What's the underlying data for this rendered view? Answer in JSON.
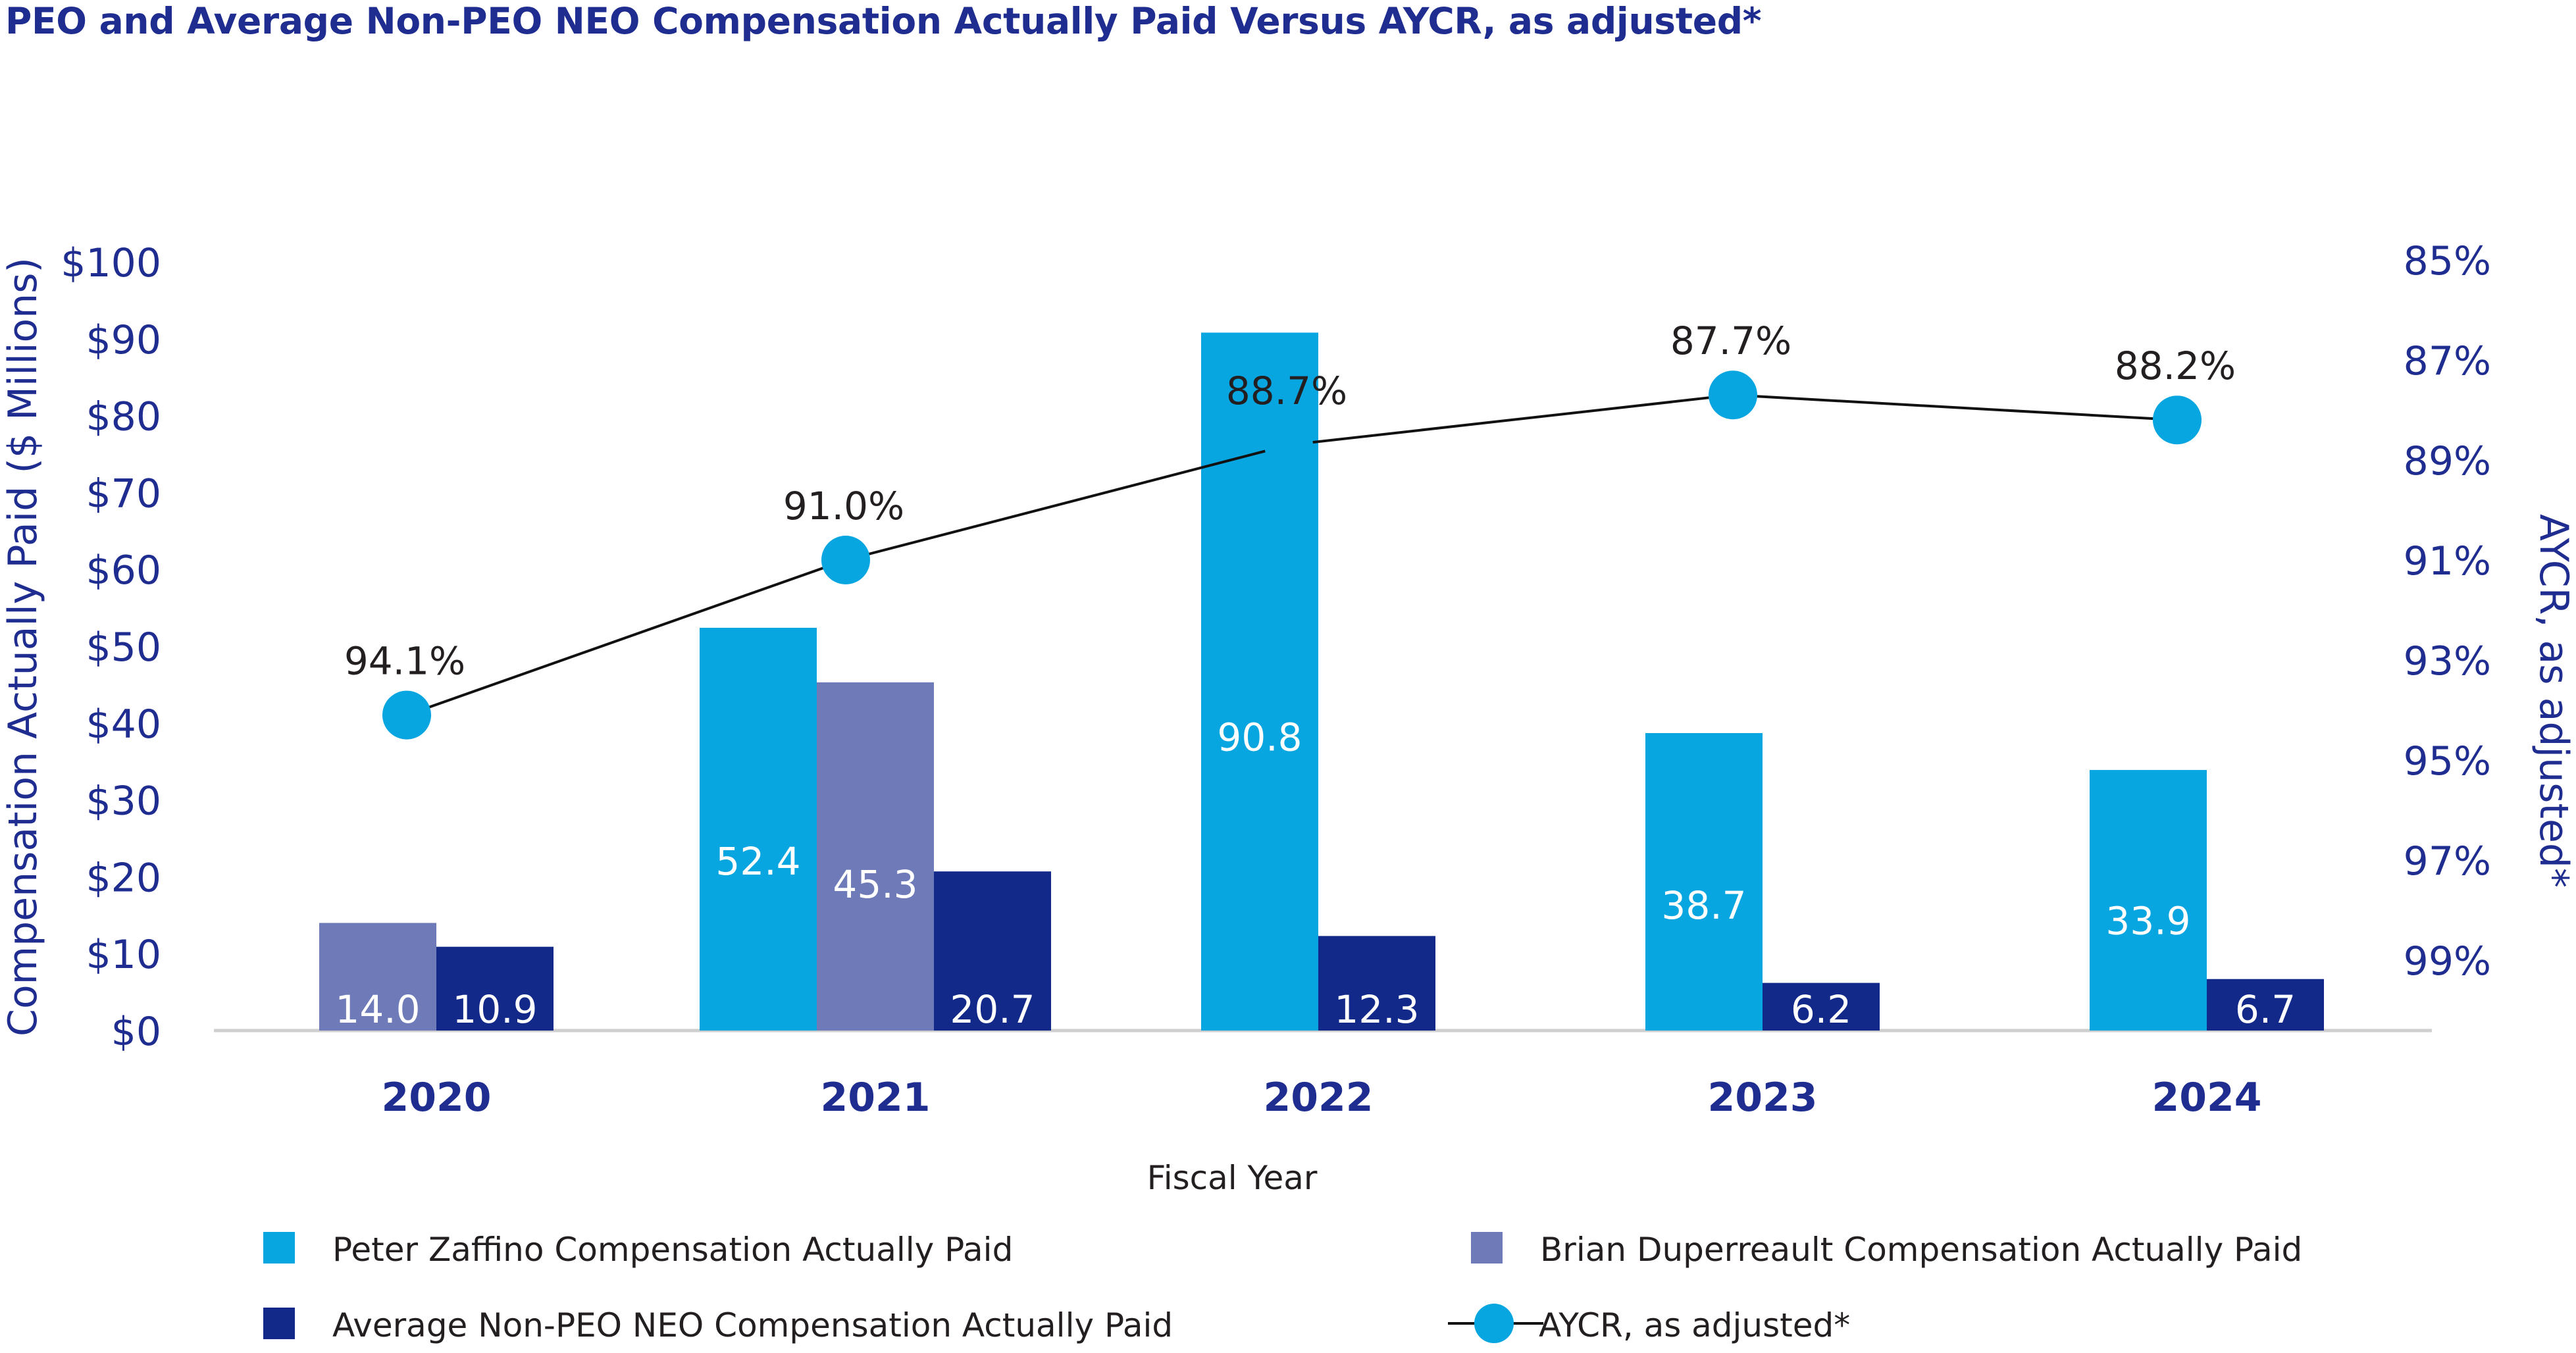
{
  "title": "PEO and Average Non-PEO NEO Compensation Actually Paid Versus AYCR, as adjusted*",
  "chart_data": {
    "type": "bar",
    "title": "PEO and Average Non-PEO NEO Compensation Actually Paid Versus AYCR, as adjusted*",
    "xlabel": "Fiscal Year",
    "ylabel": "Compensation Actually Paid ($ Millions)",
    "y2label": "AYCR, as adjusted*",
    "categories": [
      "2020",
      "2021",
      "2022",
      "2023",
      "2024"
    ],
    "ylim": [
      0,
      100
    ],
    "yticks": [
      "$0",
      "$10",
      "$20",
      "$30",
      "$40",
      "$50",
      "$60",
      "$70",
      "$80",
      "$90",
      "$100"
    ],
    "y2lim_inverted": [
      100,
      85
    ],
    "y2ticks": [
      "85%",
      "87%",
      "89%",
      "91%",
      "93%",
      "95%",
      "97%",
      "99%"
    ],
    "series": [
      {
        "name": "Peter Zaffino Compensation Actually Paid",
        "kind": "bar",
        "color": "#08a6e0",
        "values": [
          null,
          52.4,
          90.8,
          38.7,
          33.9
        ],
        "labels": [
          null,
          "52.4",
          "90.8",
          "38.7",
          "33.9"
        ]
      },
      {
        "name": "Brian Duperreault Compensation Actually Paid",
        "kind": "bar",
        "color": "#6e7bb8",
        "values": [
          14.0,
          45.3,
          null,
          null,
          null
        ],
        "labels": [
          "14.0",
          "45.3",
          null,
          null,
          null
        ]
      },
      {
        "name": "Average Non-PEO NEO Compensation Actually Paid",
        "kind": "bar",
        "color": "#12298a",
        "values": [
          10.9,
          20.7,
          12.3,
          6.2,
          6.7
        ],
        "labels": [
          "10.9",
          "20.7",
          "12.3",
          "6.2",
          "6.7"
        ]
      },
      {
        "name": "AYCR, as adjusted*",
        "kind": "line",
        "axis": "right",
        "color": "#08a6e0",
        "line_color": "#111111",
        "values": [
          94.1,
          91.0,
          88.7,
          87.7,
          88.2
        ],
        "labels": [
          "94.1%",
          "91.0%",
          "88.7%",
          "87.7%",
          "88.2%"
        ]
      }
    ],
    "legend": "bottom"
  }
}
